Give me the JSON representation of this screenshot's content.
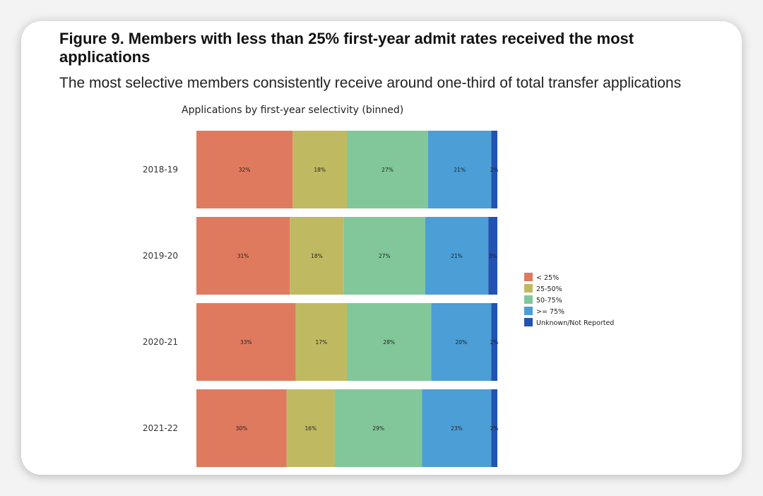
{
  "figure": {
    "title": "Figure 9. Members with less than 25% first-year admit rates received the most applications",
    "subtitle": "The most selective members consistently receive around one-third of total transfer applications"
  },
  "chart_data": {
    "type": "bar",
    "orientation": "horizontal",
    "stacked": true,
    "normalized": true,
    "title": "Applications by first-year selectivity (binned)",
    "xlabel": "",
    "ylabel": "",
    "xlim": [
      0,
      100
    ],
    "grid": false,
    "legend_position": "right",
    "categories": [
      "2018-19",
      "2019-20",
      "2020-21",
      "2021-22"
    ],
    "series": [
      {
        "name": "< 25%",
        "color": "#e07a5f",
        "values": [
          32,
          31,
          33,
          30
        ],
        "labels": [
          "32%",
          "31%",
          "33%",
          "30%"
        ]
      },
      {
        "name": "25-50%",
        "color": "#bfba61",
        "values": [
          18,
          18,
          17,
          16
        ],
        "labels": [
          "18%",
          "18%",
          "17%",
          "16%"
        ]
      },
      {
        "name": "50-75%",
        "color": "#81c79a",
        "values": [
          27,
          27,
          28,
          29
        ],
        "labels": [
          "27%",
          "27%",
          "28%",
          "29%"
        ]
      },
      {
        "name": ">= 75%",
        "color": "#4b9ed6",
        "values": [
          21,
          21,
          20,
          23
        ],
        "labels": [
          "21%",
          "21%",
          "20%",
          "23%"
        ]
      },
      {
        "name": "Unknown/Not Reported",
        "color": "#2353b2",
        "values": [
          2,
          3,
          2,
          2
        ],
        "labels": [
          "2%",
          "3%",
          "2%",
          "2%"
        ]
      }
    ]
  }
}
